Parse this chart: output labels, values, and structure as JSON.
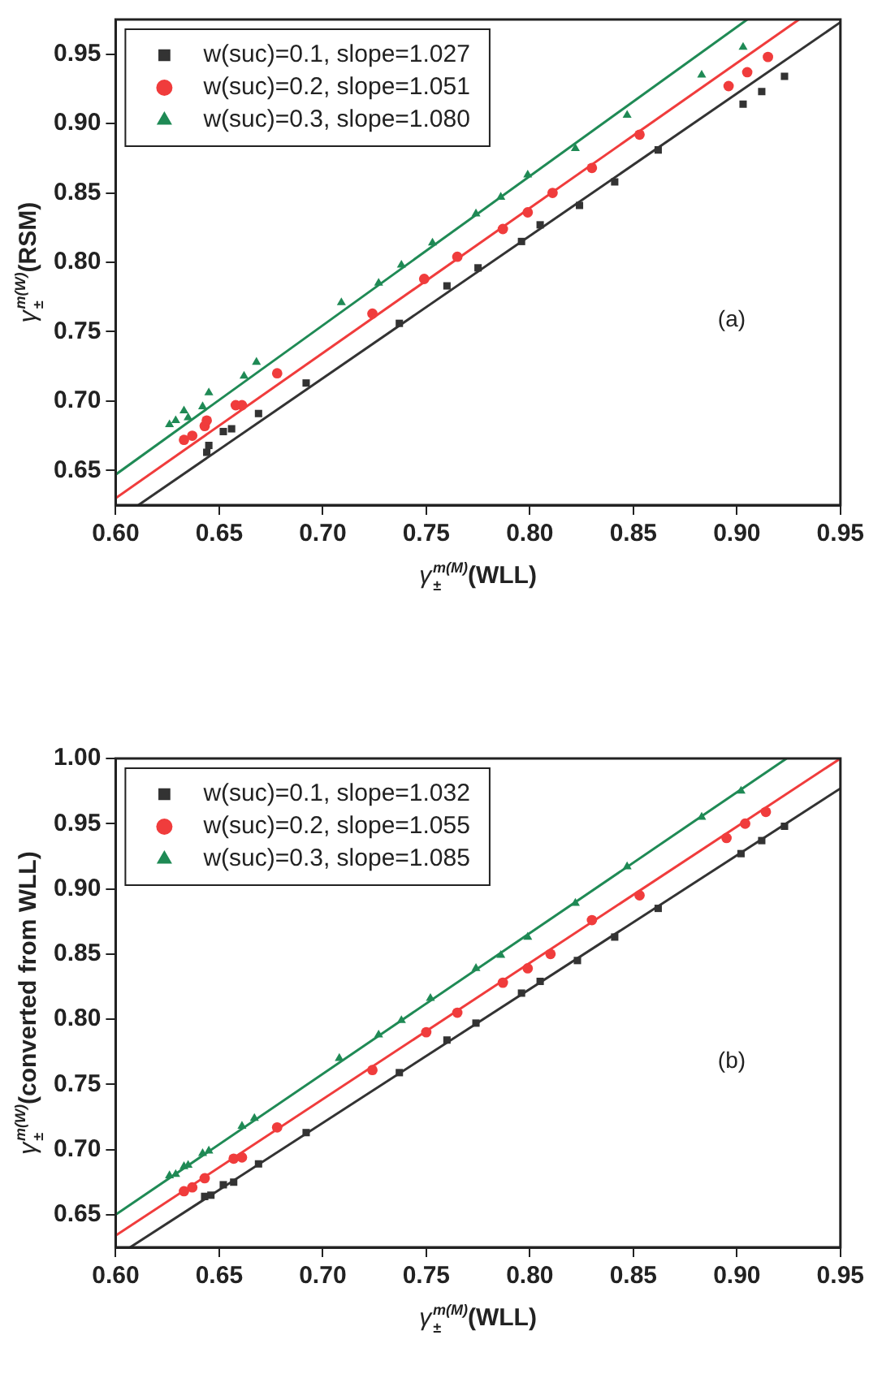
{
  "chart_data": [
    {
      "type": "scatter",
      "xlabel": "γ$_{±}$$^{m(M)}$(WLL)",
      "ylabel": "γ$_{±}$$^{m(W)}$(RSM)",
      "annotations": [
        "(a)"
      ],
      "legend": "top left",
      "grid": false,
      "xlim": [
        0.6,
        0.95
      ],
      "xticks": [
        {
          "value": 0.6,
          "label": "0.60"
        },
        {
          "value": 0.65,
          "label": "0.65"
        },
        {
          "value": 0.7,
          "label": "0.70"
        },
        {
          "value": 0.75,
          "label": "0.75"
        },
        {
          "value": 0.8,
          "label": "0.80"
        },
        {
          "value": 0.85,
          "label": "0.85"
        },
        {
          "value": 0.9,
          "label": "0.90"
        },
        {
          "value": 0.95,
          "label": "0.95"
        }
      ],
      "ylim": [
        0.625,
        0.975
      ],
      "yticks": [
        {
          "value": 0.65,
          "label": "0.65"
        },
        {
          "value": 0.7,
          "label": "0.70"
        },
        {
          "value": 0.75,
          "label": "0.75"
        },
        {
          "value": 0.8,
          "label": "0.80"
        },
        {
          "value": 0.85,
          "label": "0.85"
        },
        {
          "value": 0.9,
          "label": "0.90"
        },
        {
          "value": 0.95,
          "label": "0.95"
        }
      ],
      "series": [
        {
          "name": "w(suc)=0.1, slope=1.027",
          "color": "#333333",
          "marker": "square",
          "x": [
            0.644,
            0.645,
            0.652,
            0.656,
            0.669,
            0.692,
            0.737,
            0.76,
            0.775,
            0.796,
            0.805,
            0.824,
            0.841,
            0.862,
            0.903,
            0.912,
            0.923
          ],
          "values": [
            0.663,
            0.668,
            0.678,
            0.68,
            0.691,
            0.713,
            0.756,
            0.783,
            0.796,
            0.815,
            0.827,
            0.841,
            0.858,
            0.881,
            0.914,
            0.923,
            0.934
          ]
        },
        {
          "name": "w(suc)=0.2, slope=1.051",
          "color": "#f03c3c",
          "marker": "circle",
          "x": [
            0.633,
            0.637,
            0.643,
            0.644,
            0.658,
            0.661,
            0.678,
            0.724,
            0.749,
            0.765,
            0.787,
            0.799,
            0.811,
            0.83,
            0.853,
            0.896,
            0.905,
            0.915
          ],
          "values": [
            0.672,
            0.675,
            0.682,
            0.686,
            0.697,
            0.697,
            0.72,
            0.763,
            0.788,
            0.804,
            0.824,
            0.836,
            0.85,
            0.868,
            0.892,
            0.927,
            0.937,
            0.948
          ]
        },
        {
          "name": "w(suc)=0.3, slope=1.080",
          "color": "#1f8a55",
          "marker": "triangle",
          "x": [
            0.626,
            0.629,
            0.633,
            0.635,
            0.642,
            0.645,
            0.662,
            0.668,
            0.709,
            0.727,
            0.738,
            0.753,
            0.774,
            0.786,
            0.799,
            0.822,
            0.847,
            0.883,
            0.903
          ],
          "values": [
            0.683,
            0.686,
            0.693,
            0.688,
            0.696,
            0.706,
            0.718,
            0.728,
            0.771,
            0.785,
            0.798,
            0.814,
            0.835,
            0.847,
            0.863,
            0.882,
            0.906,
            0.935,
            0.955
          ]
        },
        {
          "type": "line",
          "color": "#333333",
          "marker": "none",
          "x": [
            0.611,
            0.95
          ],
          "values": [
            0.625,
            0.973
          ]
        },
        {
          "type": "line",
          "color": "#f03c3c",
          "marker": "none",
          "x": [
            0.6,
            0.93
          ],
          "values": [
            0.63,
            0.975
          ]
        },
        {
          "type": "line",
          "color": "#1f8a55",
          "marker": "none",
          "x": [
            0.6,
            0.905
          ],
          "values": [
            0.647,
            0.975
          ]
        }
      ]
    },
    {
      "type": "scatter",
      "xlabel": "γ$_{±}$$^{m(M)}$(WLL)",
      "ylabel": "γ$_{±}$$^{m(W)}$(converted from WLL)",
      "annotations": [
        "(b)"
      ],
      "legend": "top left",
      "grid": false,
      "xlim": [
        0.6,
        0.95
      ],
      "xticks": [
        {
          "value": 0.6,
          "label": "0.60"
        },
        {
          "value": 0.65,
          "label": "0.65"
        },
        {
          "value": 0.7,
          "label": "0.70"
        },
        {
          "value": 0.75,
          "label": "0.75"
        },
        {
          "value": 0.8,
          "label": "0.80"
        },
        {
          "value": 0.85,
          "label": "0.85"
        },
        {
          "value": 0.9,
          "label": "0.90"
        },
        {
          "value": 0.95,
          "label": "0.95"
        }
      ],
      "ylim": [
        0.625,
        1.0
      ],
      "yticks": [
        {
          "value": 0.65,
          "label": "0.65"
        },
        {
          "value": 0.7,
          "label": "0.70"
        },
        {
          "value": 0.75,
          "label": "0.75"
        },
        {
          "value": 0.8,
          "label": "0.80"
        },
        {
          "value": 0.85,
          "label": "0.85"
        },
        {
          "value": 0.9,
          "label": "0.90"
        },
        {
          "value": 0.95,
          "label": "0.95"
        },
        {
          "value": 1.0,
          "label": "1.00"
        }
      ],
      "series": [
        {
          "name": "w(suc)=0.1, slope=1.032",
          "color": "#333333",
          "marker": "square",
          "x": [
            0.643,
            0.646,
            0.652,
            0.657,
            0.669,
            0.692,
            0.737,
            0.76,
            0.774,
            0.796,
            0.805,
            0.823,
            0.841,
            0.862,
            0.902,
            0.912,
            0.923
          ],
          "values": [
            0.664,
            0.665,
            0.673,
            0.675,
            0.689,
            0.713,
            0.759,
            0.784,
            0.797,
            0.82,
            0.829,
            0.845,
            0.863,
            0.885,
            0.927,
            0.937,
            0.948
          ]
        },
        {
          "name": "w(suc)=0.2, slope=1.055",
          "color": "#f03c3c",
          "marker": "circle",
          "x": [
            0.633,
            0.637,
            0.643,
            0.657,
            0.661,
            0.678,
            0.724,
            0.75,
            0.765,
            0.787,
            0.799,
            0.81,
            0.83,
            0.853,
            0.895,
            0.904,
            0.914
          ],
          "values": [
            0.668,
            0.671,
            0.678,
            0.693,
            0.694,
            0.717,
            0.761,
            0.79,
            0.805,
            0.828,
            0.839,
            0.85,
            0.876,
            0.895,
            0.939,
            0.95,
            0.959
          ]
        },
        {
          "name": "w(suc)=0.3, slope=1.085",
          "color": "#1f8a55",
          "marker": "triangle",
          "x": [
            0.626,
            0.629,
            0.633,
            0.635,
            0.642,
            0.645,
            0.661,
            0.667,
            0.708,
            0.727,
            0.738,
            0.752,
            0.774,
            0.786,
            0.799,
            0.822,
            0.847,
            0.883,
            0.902
          ],
          "values": [
            0.68,
            0.681,
            0.687,
            0.688,
            0.697,
            0.699,
            0.718,
            0.724,
            0.77,
            0.788,
            0.799,
            0.816,
            0.839,
            0.849,
            0.863,
            0.889,
            0.917,
            0.955,
            0.975
          ]
        },
        {
          "type": "line",
          "color": "#333333",
          "marker": "none",
          "x": [
            0.607,
            0.95
          ],
          "values": [
            0.625,
            0.977
          ]
        },
        {
          "type": "line",
          "color": "#f03c3c",
          "marker": "none",
          "x": [
            0.6,
            0.95
          ],
          "values": [
            0.634,
            1.0
          ]
        },
        {
          "type": "line",
          "color": "#1f8a55",
          "marker": "none",
          "x": [
            0.6,
            0.924
          ],
          "values": [
            0.65,
            1.0
          ]
        }
      ]
    }
  ]
}
